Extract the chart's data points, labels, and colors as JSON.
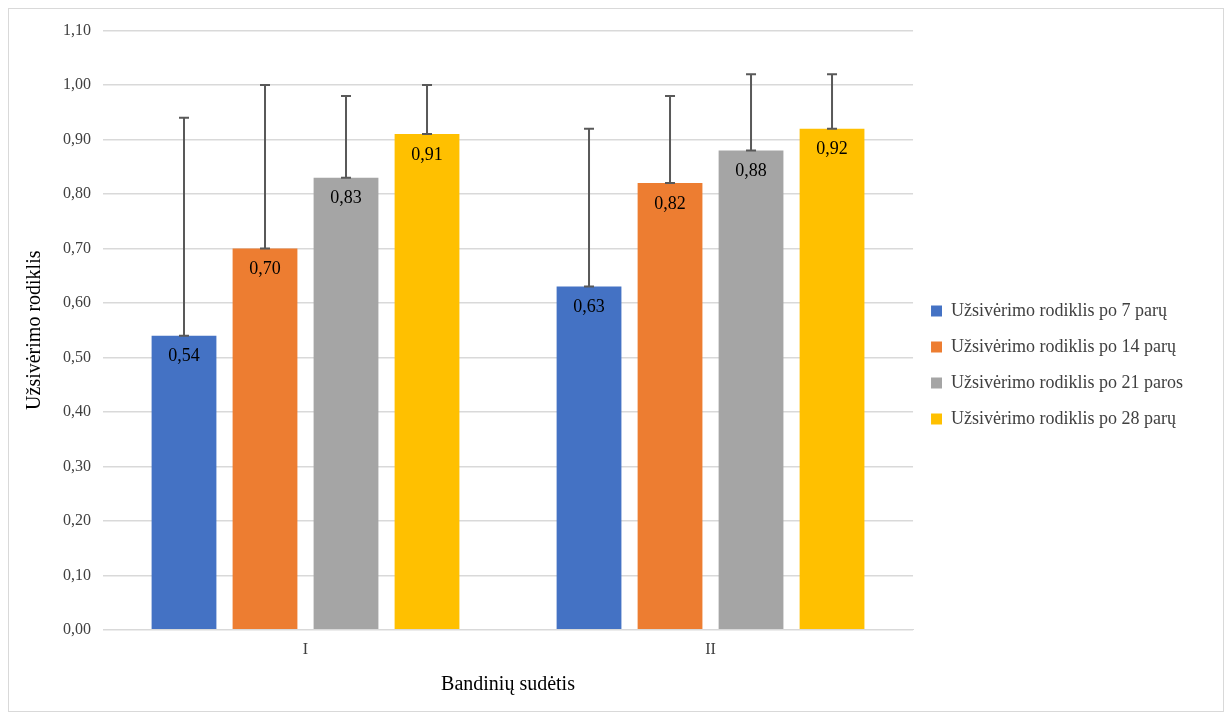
{
  "chart_data": {
    "type": "bar",
    "xlabel": "Bandinių sudėtis",
    "ylabel": "Užsivėrimo rodiklis",
    "categories": [
      "I",
      "II"
    ],
    "series": [
      {
        "name": "Užsivėrimo rodiklis po 7 parų",
        "color": "#4472c4",
        "values": [
          0.54,
          0.63
        ],
        "value_labels": [
          "0,54",
          "0,63"
        ],
        "errors": [
          [
            0.54,
            0.94
          ],
          [
            0.63,
            0.92
          ]
        ]
      },
      {
        "name": "Užsivėrimo rodiklis po 14 parų",
        "color": "#ed7d31",
        "values": [
          0.7,
          0.82
        ],
        "value_labels": [
          "0,70",
          "0,82"
        ],
        "errors": [
          [
            0.7,
            1.0
          ],
          [
            0.82,
            0.98
          ]
        ]
      },
      {
        "name": "Užsivėrimo rodiklis po 21 paros",
        "color": "#a5a5a5",
        "values": [
          0.83,
          0.88
        ],
        "value_labels": [
          "0,83",
          "0,88"
        ],
        "errors": [
          [
            0.83,
            0.98
          ],
          [
            0.88,
            1.02
          ]
        ]
      },
      {
        "name": "Užsivėrimo rodiklis po 28 parų",
        "color": "#ffc000",
        "values": [
          0.91,
          0.92
        ],
        "value_labels": [
          "0,91",
          "0,92"
        ],
        "errors": [
          [
            0.91,
            1.0
          ],
          [
            0.92,
            1.02
          ]
        ]
      }
    ],
    "ylim": [
      0,
      1.1
    ],
    "yticks": [
      {
        "value": 0,
        "label": "0,00"
      },
      {
        "value": 0.1,
        "label": "0,10"
      },
      {
        "value": 0.2,
        "label": "0,20"
      },
      {
        "value": 0.3,
        "label": "0,30"
      },
      {
        "value": 0.4,
        "label": "0,40"
      },
      {
        "value": 0.5,
        "label": "0,50"
      },
      {
        "value": 0.6,
        "label": "0,60"
      },
      {
        "value": 0.7,
        "label": "0,70"
      },
      {
        "value": 0.8,
        "label": "0,80"
      },
      {
        "value": 0.9,
        "label": "0,90"
      },
      {
        "value": 1.0,
        "label": "1,00"
      },
      {
        "value": 1.1,
        "label": "1,10"
      }
    ],
    "grid": "y",
    "legend": "right"
  }
}
